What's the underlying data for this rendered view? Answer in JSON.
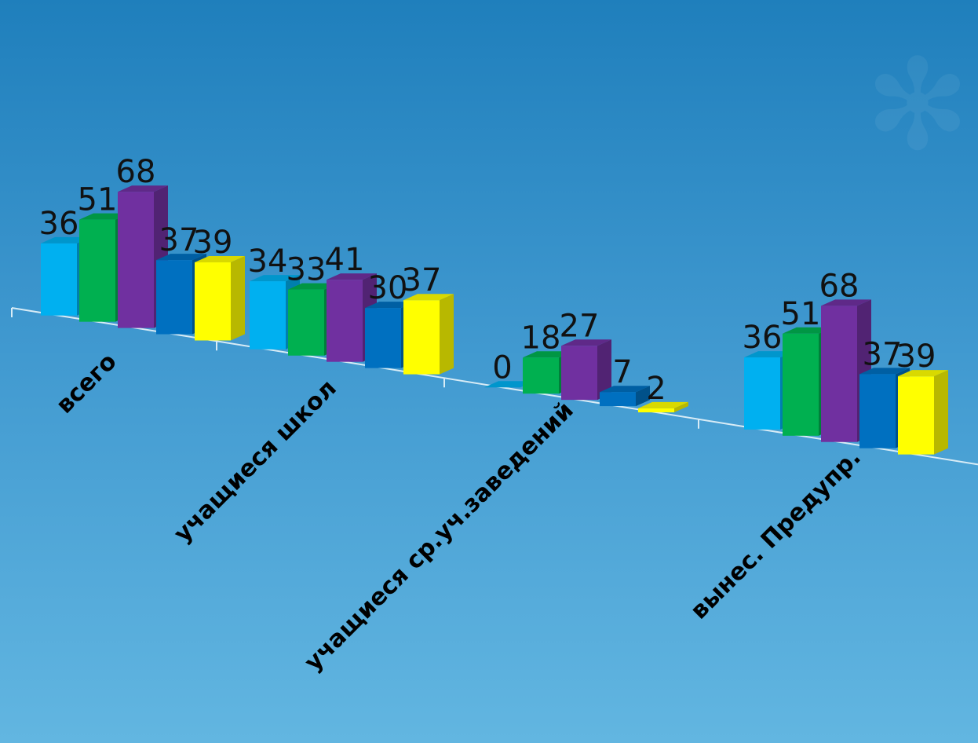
{
  "chart_data": {
    "type": "bar",
    "style": "3d-clustered-column",
    "title": "",
    "xlabel": "",
    "ylabel": "",
    "ylim": [
      0,
      70
    ],
    "grid": false,
    "legend": "none",
    "categories": [
      "всего",
      "учащиеся школ",
      "учащиеся ср.уч.заведений",
      "вынес. Предупр."
    ],
    "series": [
      {
        "color": "#00b0f0",
        "values": [
          36,
          34,
          0,
          36
        ]
      },
      {
        "color": "#00b050",
        "values": [
          51,
          33,
          18,
          51
        ]
      },
      {
        "color": "#7030a0",
        "values": [
          68,
          41,
          27,
          68
        ]
      },
      {
        "color": "#0070c0",
        "values": [
          37,
          30,
          7,
          37
        ]
      },
      {
        "color": "#ffff00",
        "values": [
          39,
          37,
          2,
          39
        ]
      }
    ]
  }
}
